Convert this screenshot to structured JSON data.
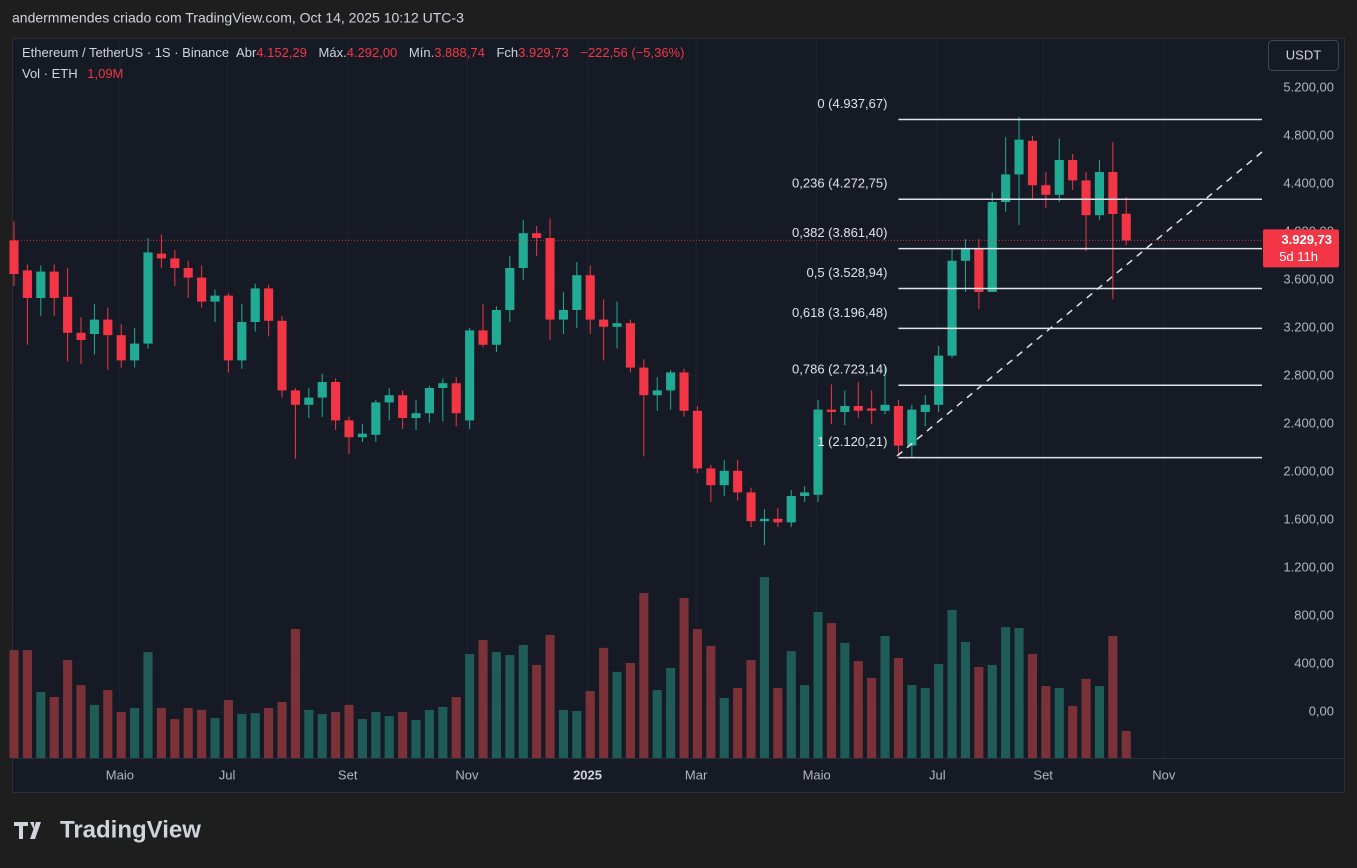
{
  "header": {
    "attribution": "andermmendes criado com TradingView.com, Oct 14, 2025 10:12 UTC-3"
  },
  "chart_data": {
    "type": "candlestick",
    "symbol": "Ethereum / TetherUS · 1S · Binance",
    "legend": [
      {
        "label": "Abr",
        "value": "4.152,29"
      },
      {
        "label": "Máx.",
        "value": "4.292,00"
      },
      {
        "label": "Mín.",
        "value": "3.888,74"
      },
      {
        "label": "Fch",
        "value": "3.929,73"
      }
    ],
    "change": "−222,56 (−5,36%)",
    "volume_label": "Vol · ETH",
    "volume_value": "1,09M",
    "currency": "USDT",
    "open": [
      3930,
      3680,
      3450,
      3670,
      3460,
      3160,
      3150,
      3270,
      3140,
      2930,
      3070,
      3820,
      3780,
      3700,
      3620,
      3420,
      3470,
      2930,
      3250,
      3530,
      3260,
      2680,
      2560,
      2620,
      2750,
      2430,
      2290,
      2310,
      2580,
      2640,
      2450,
      2490,
      2700,
      2740,
      2430,
      3180,
      3060,
      3350,
      3700,
      3990,
      3950,
      3270,
      3350,
      3640,
      3270,
      3210,
      3240,
      2870,
      2640,
      2680,
      2830,
      2510,
      2030,
      1890,
      2010,
      1830,
      1590,
      1610,
      1580,
      1800,
      1810,
      2520,
      2500,
      2550,
      2530,
      2510,
      2550,
      2220,
      2500,
      2560,
      2970,
      3760,
      3860,
      3500,
      4250,
      4480,
      4760,
      4390,
      4310,
      4600,
      4430,
      4140,
      4500,
      4152.29
    ],
    "high": [
      4090,
      3730,
      3720,
      3730,
      3700,
      3290,
      3400,
      3370,
      3230,
      3200,
      3950,
      3980,
      3850,
      3760,
      3720,
      3520,
      3490,
      3400,
      3570,
      3560,
      3300,
      2700,
      2700,
      2820,
      2780,
      2460,
      2400,
      2600,
      2700,
      2680,
      2600,
      2720,
      2780,
      2790,
      3200,
      3400,
      3380,
      3800,
      4100,
      4050,
      4110,
      3500,
      3750,
      3720,
      3440,
      3420,
      3270,
      2940,
      2790,
      2850,
      2860,
      2550,
      2060,
      2100,
      2100,
      1870,
      1690,
      1700,
      1850,
      1880,
      2600,
      2730,
      2680,
      2750,
      2680,
      2880,
      2600,
      2560,
      2640,
      3050,
      3860,
      3940,
      3940,
      4330,
      4790,
      4960,
      4800,
      4500,
      4780,
      4650,
      4500,
      4600,
      4750,
      4292
    ],
    "low": [
      3550,
      3060,
      3300,
      3300,
      2920,
      2900,
      2980,
      2850,
      2870,
      2870,
      3030,
      3700,
      3550,
      3450,
      3370,
      3250,
      2830,
      2860,
      3170,
      3130,
      2620,
      2110,
      2450,
      2460,
      2350,
      2150,
      2250,
      2250,
      2430,
      2360,
      2350,
      2410,
      2420,
      2380,
      2360,
      3040,
      3000,
      3250,
      3600,
      3800,
      3100,
      3150,
      3200,
      3150,
      2930,
      3030,
      2830,
      2130,
      2510,
      2520,
      2460,
      1990,
      1750,
      1800,
      1760,
      1540,
      1390,
      1540,
      1540,
      1750,
      1750,
      2400,
      2390,
      2450,
      2400,
      2480,
      2150,
      2120,
      2380,
      2500,
      2950,
      3500,
      3360,
      3500,
      4170,
      4060,
      4280,
      4200,
      4250,
      4350,
      3840,
      4100,
      3440,
      3888.74
    ],
    "close": [
      3650,
      3450,
      3670,
      3450,
      3160,
      3100,
      3270,
      3140,
      2930,
      3070,
      3830,
      3780,
      3700,
      3620,
      3420,
      3470,
      2930,
      3250,
      3530,
      3260,
      2680,
      2560,
      2620,
      2750,
      2430,
      2290,
      2320,
      2580,
      2640,
      2450,
      2490,
      2700,
      2740,
      2490,
      3180,
      3060,
      3350,
      3700,
      3990,
      3950,
      3270,
      3350,
      3640,
      3270,
      3210,
      3240,
      2870,
      2640,
      2680,
      2830,
      2510,
      2030,
      1890,
      2010,
      1830,
      1590,
      1610,
      1580,
      1800,
      1830,
      2520,
      2500,
      2550,
      2510,
      2510,
      2560,
      2220,
      2520,
      2560,
      2970,
      3760,
      3860,
      3500,
      4250,
      4480,
      4770,
      4390,
      4310,
      4600,
      4430,
      4140,
      4500,
      4150,
      3929.73
    ],
    "volume": [
      4.35,
      4.35,
      2.66,
      2.46,
      3.95,
      2.94,
      2.14,
      2.74,
      1.85,
      2.02,
      4.27,
      2.02,
      1.57,
      2.02,
      1.94,
      1.61,
      2.34,
      1.77,
      1.81,
      2.02,
      2.26,
      5.2,
      1.94,
      1.77,
      1.85,
      2.14,
      1.57,
      1.85,
      1.69,
      1.85,
      1.53,
      1.94,
      2.06,
      2.46,
      4.19,
      4.76,
      4.27,
      4.15,
      4.56,
      3.75,
      4.96,
      1.94,
      1.9,
      2.7,
      4.44,
      3.47,
      3.83,
      6.65,
      2.74,
      3.63,
      6.45,
      5.2,
      4.52,
      2.42,
      2.82,
      3.95,
      7.3,
      2.82,
      4.31,
      2.94,
      5.89,
      5.44,
      4.64,
      3.91,
      3.23,
      4.92,
      4.03,
      2.94,
      2.82,
      3.79,
      5.97,
      4.68,
      3.67,
      3.75,
      5.28,
      5.24,
      4.19,
      2.9,
      2.82,
      2.1,
      3.19,
      2.9,
      4.92,
      1.09
    ],
    "up_color": "#22ab94",
    "down_color": "#f23645",
    "volume_up_color": "#1f5c57",
    "volume_down_color": "#7a3238",
    "last_price": {
      "value": 3929.73,
      "label": "3.929,73"
    },
    "countdown": "5d 11h",
    "fib_levels": [
      {
        "value": 4937.67,
        "label": "0 (4.937,67)"
      },
      {
        "value": 4272.75,
        "label": "0,236 (4.272,75)"
      },
      {
        "value": 3861.4,
        "label": "0,382 (3.861,40)"
      },
      {
        "value": 3528.94,
        "label": "0,5 (3.528,94)"
      },
      {
        "value": 3196.48,
        "label": "0,618 (3.196,48)"
      },
      {
        "value": 2723.14,
        "label": "0,786 (2.723,14)"
      },
      {
        "value": 2120.21,
        "label": "1 (2.120,21)"
      }
    ],
    "fib_start": 66,
    "ylim": [
      -383.33,
      5616.67
    ],
    "yticks": [
      {
        "value": 5200,
        "label": "5.200,00"
      },
      {
        "value": 4800,
        "label": "4.800,00"
      },
      {
        "value": 4400,
        "label": "4.400,00"
      },
      {
        "value": 4000,
        "label": "4.000,00"
      },
      {
        "value": 3600,
        "label": "3.600,00"
      },
      {
        "value": 3200,
        "label": "3.200,00"
      },
      {
        "value": 2800,
        "label": "2.800,00"
      },
      {
        "value": 2400,
        "label": "2.400,00"
      },
      {
        "value": 2000,
        "label": "2.000,00"
      },
      {
        "value": 1600,
        "label": "1.600,00"
      },
      {
        "value": 1200,
        "label": "1.200,00"
      },
      {
        "value": 800,
        "label": "800,00"
      },
      {
        "value": 400,
        "label": "400,00"
      },
      {
        "value": 0,
        "label": "0,00"
      }
    ],
    "vlim": [
      0,
      29.03
    ],
    "xlim": [
      -0.15,
      93.13
    ],
    "xticks": [
      {
        "value": 7.9,
        "label": "Maio"
      },
      {
        "value": 15.9,
        "label": "Jul"
      },
      {
        "value": 24.9,
        "label": "Set"
      },
      {
        "value": 33.8,
        "label": "Nov"
      },
      {
        "value": 42.8,
        "label": "2025"
      },
      {
        "value": 50.9,
        "label": "Mar"
      },
      {
        "value": 59.9,
        "label": "Maio"
      },
      {
        "value": 68.9,
        "label": "Jul"
      },
      {
        "value": 76.8,
        "label": "Set"
      },
      {
        "value": 85.8,
        "label": "Nov"
      }
    ],
    "grid": true
  },
  "footer": {
    "brand": "TradingView"
  }
}
